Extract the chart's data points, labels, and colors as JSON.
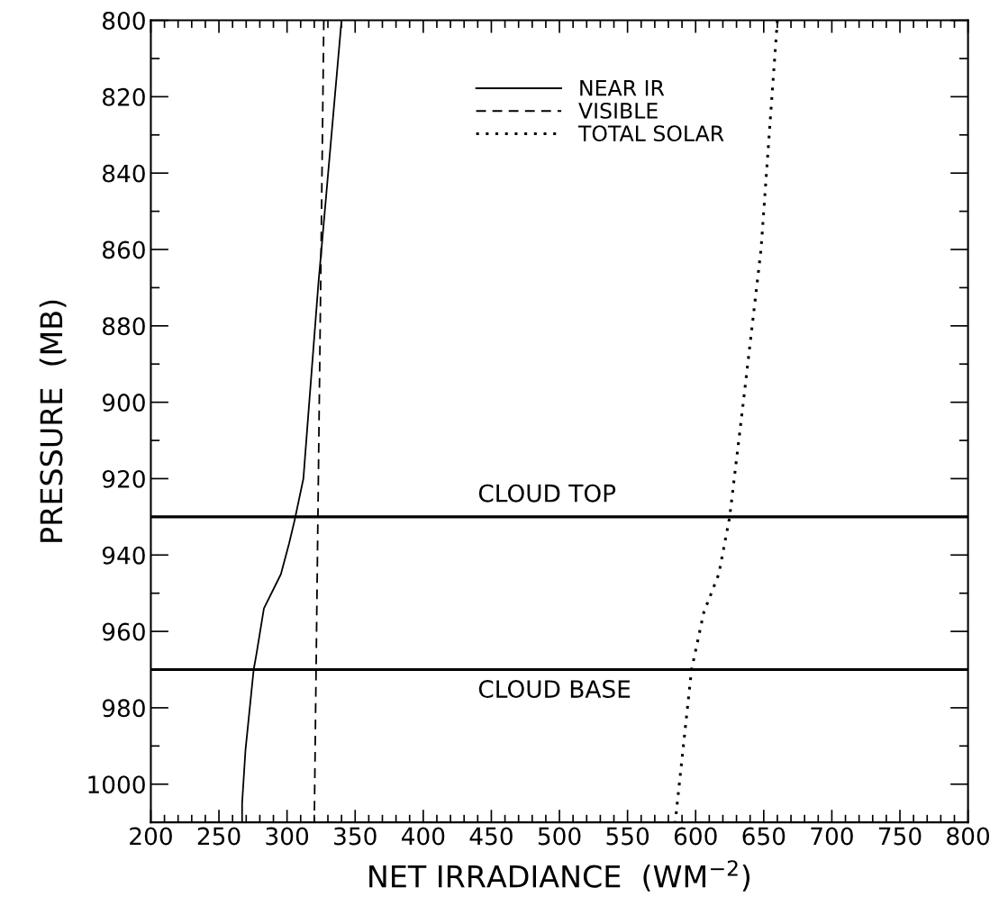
{
  "chart_data": {
    "type": "line",
    "xlabel": "NET IRRADIANCE  (WM$^{−2}$)",
    "ylabel": "PRESSURE  (MB)",
    "series": [
      {
        "name": "NEAR IR",
        "color": "#000000",
        "line_style": "solid",
        "x": [
          340,
          326,
          323,
          312,
          305.5,
          301.5,
          295.5,
          283,
          277.5,
          275.5,
          269.5,
          267,
          267
        ],
        "values": [
          800,
          857,
          869,
          920,
          931,
          937,
          945,
          954,
          966,
          970,
          991,
          1005,
          1010
        ]
      },
      {
        "name": "VISIBLE",
        "color": "#000000",
        "line_style": "dashed",
        "x": [
          327,
          320
        ],
        "values": [
          800,
          1010
        ]
      },
      {
        "name": "TOTAL SOLAR",
        "color": "#000000",
        "line_style": "dotted",
        "x": [
          660,
          648,
          635,
          625,
          617,
          606,
          597,
          588,
          585
        ],
        "values": [
          800,
          860,
          900,
          930,
          945,
          955,
          970,
          1000,
          1010
        ]
      }
    ],
    "xlim": [
      200,
      800
    ],
    "ylim": [
      1010,
      800
    ],
    "xticks": [
      200,
      250,
      300,
      350,
      400,
      450,
      500,
      550,
      600,
      650,
      700,
      750,
      800
    ],
    "yticks": [
      800,
      {
        "value": 810,
        "label": null
      },
      820,
      {
        "value": 830,
        "label": null
      },
      840,
      {
        "value": 850,
        "label": null
      },
      860,
      {
        "value": 870,
        "label": null
      },
      880,
      {
        "value": 890,
        "label": null
      },
      900,
      {
        "value": 910,
        "label": null
      },
      920,
      {
        "value": 930,
        "label": null
      },
      940,
      {
        "value": 950,
        "label": null
      },
      960,
      {
        "value": 970,
        "label": null
      },
      980,
      {
        "value": 990,
        "label": null
      },
      1000
    ],
    "ref_lines": [
      {
        "axis": "y",
        "value": 930,
        "label": "CLOUD TOP",
        "color": "#000000"
      },
      {
        "axis": "y",
        "value": 970,
        "label": "CLOUD BASE",
        "color": "#000000"
      }
    ],
    "legend": "top",
    "grid": false
  }
}
